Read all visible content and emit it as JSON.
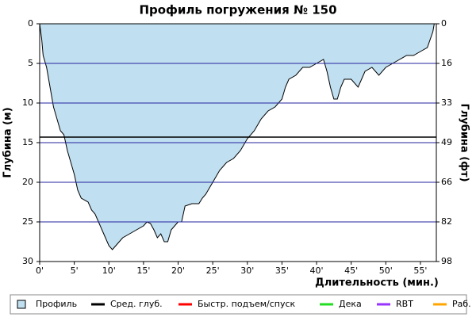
{
  "chart_data": {
    "type": "area",
    "title": "Профиль погружения № 150",
    "x_label": "Длительность (мин.)",
    "y_label": "Глубина (м)",
    "y2_label": "Глубина (фт)",
    "xlim": [
      0,
      57.3
    ],
    "xticks": [
      {
        "value": 0,
        "label": "0'"
      },
      {
        "value": 5,
        "label": "5'"
      },
      {
        "value": 10,
        "label": "10'"
      },
      {
        "value": 15,
        "label": "15'"
      },
      {
        "value": 20,
        "label": "20'"
      },
      {
        "value": 25,
        "label": "25'"
      },
      {
        "value": 30,
        "label": "30'"
      },
      {
        "value": 35,
        "label": "35'"
      },
      {
        "value": 40,
        "label": "40'"
      },
      {
        "value": 45,
        "label": "45'"
      },
      {
        "value": 50,
        "label": "50'"
      },
      {
        "value": 55,
        "label": "55'"
      }
    ],
    "ylim": [
      0,
      30
    ],
    "y_reversed": true,
    "yticks": [
      0,
      5,
      10,
      15,
      20,
      25,
      30
    ],
    "y2lim": [
      0,
      98.4
    ],
    "y2ticks": [
      0,
      {
        "value": 16.4,
        "label": "16"
      },
      {
        "value": 32.8,
        "label": "33"
      },
      {
        "value": 49.2,
        "label": "49"
      },
      {
        "value": 65.6,
        "label": "66"
      },
      {
        "value": 82,
        "label": "82"
      },
      {
        "value": 98.4,
        "label": "98"
      }
    ],
    "grid": true,
    "grid_color": "#2323a0",
    "x": [
      0,
      0.3,
      0.5,
      1,
      1.5,
      2,
      2.5,
      3,
      3.5,
      4,
      4.5,
      5,
      5.5,
      6,
      7,
      7.5,
      8,
      8.5,
      9,
      9.5,
      10,
      10.5,
      11,
      11.5,
      12,
      13,
      14,
      15,
      15.5,
      16,
      16.5,
      17,
      17.5,
      18,
      18.5,
      19,
      19.5,
      20,
      20.5,
      21,
      22,
      23,
      23.5,
      24,
      25,
      26,
      27,
      28,
      29,
      30,
      31,
      32,
      33,
      34,
      35,
      35.5,
      36,
      37,
      38,
      39,
      40,
      41,
      41.5,
      42,
      42.5,
      43,
      43.5,
      44,
      45,
      46,
      47,
      48,
      49,
      50,
      51,
      52,
      53,
      54,
      55,
      56,
      56.8,
      57
    ],
    "series": [
      {
        "name": "Профиль",
        "color": "#c0dff0",
        "line_color": "#000000",
        "values": [
          0,
          2,
          4,
          5.5,
          8,
          10.5,
          12,
          13.5,
          14,
          16,
          17.5,
          19,
          21,
          22,
          22.5,
          23.5,
          24,
          25,
          26,
          27,
          28,
          28.5,
          28,
          27.5,
          27,
          26.5,
          26,
          25.5,
          25,
          25.2,
          26,
          27,
          26.5,
          27.5,
          27.5,
          26,
          25.5,
          25,
          25,
          23,
          22.7,
          22.7,
          22,
          21.5,
          20,
          18.5,
          17.5,
          17,
          16,
          14.5,
          13.5,
          12,
          11,
          10.5,
          9.5,
          8,
          7,
          6.5,
          5.5,
          5.5,
          5,
          4.5,
          6,
          8,
          9.5,
          9.5,
          8,
          7,
          7,
          8,
          6,
          5.5,
          6.5,
          5.5,
          5,
          4.5,
          4,
          4,
          3.5,
          3,
          1,
          0
        ]
      }
    ],
    "average": {
      "name": "Сред. глуб.",
      "color": "#000000",
      "value": 14.3
    },
    "legend_items": [
      {
        "name": "Быстр. подъем/спуск",
        "color": "#ff0000"
      },
      {
        "name": "Дека",
        "color": "#22dd22"
      },
      {
        "name": "RBT",
        "color": "#9933ff"
      },
      {
        "name": "Раб.",
        "color": "#ffa500"
      }
    ]
  }
}
